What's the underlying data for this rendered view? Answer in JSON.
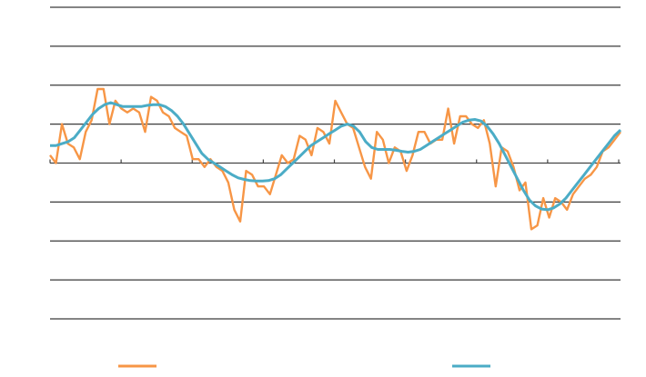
{
  "chart_data": {
    "type": "line",
    "title": "",
    "xlabel": "",
    "ylabel": "",
    "ylim": [
      -4,
      4
    ],
    "grid": true,
    "legend_position": "bottom",
    "x_count": 121,
    "series": [
      {
        "color": "#f79646",
        "values": [
          0.2,
          0.0,
          1.0,
          0.5,
          0.4,
          0.1,
          0.8,
          1.1,
          1.9,
          1.9,
          1.0,
          1.6,
          1.4,
          1.3,
          1.4,
          1.3,
          0.8,
          1.7,
          1.6,
          1.3,
          1.2,
          0.9,
          0.8,
          0.7,
          0.1,
          0.1,
          -0.1,
          0.1,
          -0.1,
          -0.2,
          -0.5,
          -1.2,
          -1.5,
          -0.2,
          -0.3,
          -0.6,
          -0.6,
          -0.8,
          -0.3,
          0.2,
          0.0,
          0.1,
          0.7,
          0.6,
          0.2,
          0.9,
          0.8,
          0.5,
          1.6,
          1.3,
          1.0,
          0.9,
          0.4,
          -0.1,
          -0.4,
          0.8,
          0.6,
          0.0,
          0.4,
          0.3,
          -0.2,
          0.2,
          0.8,
          0.8,
          0.5,
          0.6,
          0.6,
          1.4,
          0.5,
          1.2,
          1.2,
          1.0,
          0.9,
          1.1,
          0.5,
          -0.6,
          0.4,
          0.3,
          -0.1,
          -0.7,
          -0.5,
          -1.7,
          -1.6,
          -0.9,
          -1.4,
          -0.9,
          -1.0,
          -1.2,
          -0.8,
          -0.6,
          -0.4,
          -0.3,
          -0.1,
          0.3,
          0.4,
          0.6,
          0.8
        ]
      },
      {
        "color": "#4bacc6",
        "values": [
          0.45,
          0.45,
          0.5,
          0.55,
          0.65,
          0.85,
          1.05,
          1.25,
          1.4,
          1.5,
          1.55,
          1.5,
          1.45,
          1.45,
          1.45,
          1.45,
          1.48,
          1.5,
          1.5,
          1.45,
          1.35,
          1.2,
          1.0,
          0.75,
          0.5,
          0.25,
          0.1,
          0.0,
          -0.1,
          -0.2,
          -0.3,
          -0.38,
          -0.42,
          -0.45,
          -0.46,
          -0.46,
          -0.45,
          -0.4,
          -0.3,
          -0.15,
          0.0,
          0.15,
          0.3,
          0.45,
          0.55,
          0.65,
          0.75,
          0.85,
          0.95,
          1.0,
          0.95,
          0.8,
          0.55,
          0.4,
          0.35,
          0.35,
          0.35,
          0.33,
          0.3,
          0.28,
          0.3,
          0.35,
          0.45,
          0.55,
          0.65,
          0.75,
          0.85,
          0.95,
          1.05,
          1.1,
          1.12,
          1.08,
          0.95,
          0.75,
          0.5,
          0.2,
          -0.1,
          -0.4,
          -0.7,
          -0.95,
          -1.1,
          -1.18,
          -1.2,
          -1.15,
          -1.05,
          -0.9,
          -0.7,
          -0.5,
          -0.3,
          -0.1,
          0.1,
          0.3,
          0.5,
          0.7,
          0.85
        ]
      }
    ]
  }
}
